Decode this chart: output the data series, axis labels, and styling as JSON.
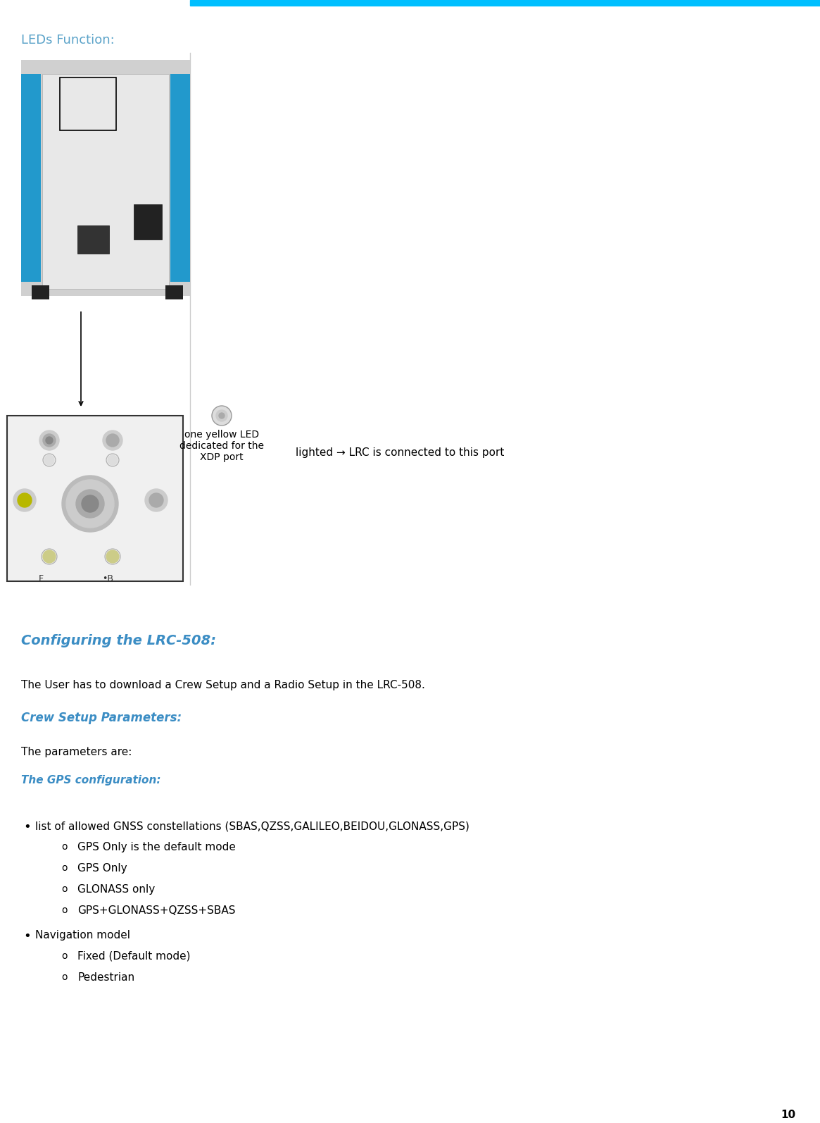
{
  "bg_color": "#ffffff",
  "cyan_bar_color": "#00BFFF",
  "heading_leds": "LEDs Function:",
  "heading_leds_color": "#5BA3C9",
  "section_title": "Configuring the LRC-508:",
  "section_title_color": "#3B8DC4",
  "crew_setup_title": "Crew Setup Parameters:",
  "crew_setup_color": "#3B8DC4",
  "gps_config_title": "The GPS configuration:",
  "gps_config_color": "#3B8DC4",
  "body_color": "#000000",
  "body_text1": "The User has to download a Crew Setup and a Radio Setup in the LRC-508.",
  "params_text": "The parameters are:",
  "bullet1_text": "list of allowed GNSS constellations (SBAS,QZSS,GALILEO,BEIDOU,GLONASS,GPS)",
  "sub_bullets1": [
    "GPS Only is the default mode",
    "GPS Only",
    "GLONASS only",
    "GPS+GLONASS+QZSS+SBAS"
  ],
  "bullet2_text": "Navigation model",
  "sub_bullets2": [
    "Fixed (Default mode)",
    "Pedestrian"
  ],
  "annotation_led": "one yellow LED\ndedicated for the\nXDP port",
  "annotation_lighted": "lighted → LRC is connected to this port",
  "page_number": "10",
  "font_size_heading": 13,
  "font_size_section": 13,
  "font_size_body": 11,
  "font_size_sub": 11,
  "font_size_page": 11
}
